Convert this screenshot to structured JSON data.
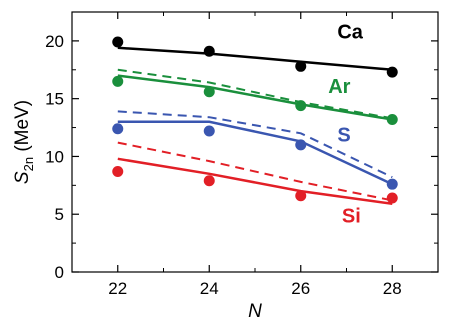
{
  "chart_data": {
    "type": "line",
    "title": "",
    "xlabel": "N",
    "ylabel": "S",
    "ylabel_sub": "2n",
    "ylabel_unit": " (MeV)",
    "xlim": [
      21,
      29
    ],
    "ylim": [
      0,
      22.5
    ],
    "xticks": [
      22,
      24,
      26,
      28
    ],
    "yticks": [
      0,
      5,
      10,
      15,
      20
    ],
    "grid": false,
    "legend": "inline labels",
    "series": [
      {
        "name": "Ca",
        "color": "#000000",
        "points": [
          {
            "x": 22,
            "y": 19.9
          },
          {
            "x": 24,
            "y": 19.1
          },
          {
            "x": 26,
            "y": 17.8
          },
          {
            "x": 28,
            "y": 17.3
          }
        ],
        "solid": [
          {
            "x": 22,
            "y": 19.4
          },
          {
            "x": 24,
            "y": 18.9
          },
          {
            "x": 26,
            "y": 18.2
          },
          {
            "x": 28,
            "y": 17.5
          }
        ],
        "dashed": []
      },
      {
        "name": "Ar",
        "color": "#1a8f3c",
        "points": [
          {
            "x": 22,
            "y": 16.5
          },
          {
            "x": 24,
            "y": 15.6
          },
          {
            "x": 26,
            "y": 14.4
          },
          {
            "x": 28,
            "y": 13.2
          }
        ],
        "solid": [
          {
            "x": 22,
            "y": 17.0
          },
          {
            "x": 24,
            "y": 16.0
          },
          {
            "x": 26,
            "y": 14.5
          },
          {
            "x": 28,
            "y": 13.2
          }
        ],
        "dashed": [
          {
            "x": 22,
            "y": 17.5
          },
          {
            "x": 24,
            "y": 16.4
          },
          {
            "x": 26,
            "y": 14.7
          },
          {
            "x": 28,
            "y": 13.3
          }
        ]
      },
      {
        "name": "S",
        "color": "#3a56b0",
        "points": [
          {
            "x": 22,
            "y": 12.4
          },
          {
            "x": 24,
            "y": 12.2
          },
          {
            "x": 26,
            "y": 11.0
          },
          {
            "x": 28,
            "y": 7.6
          }
        ],
        "solid": [
          {
            "x": 22,
            "y": 13.0
          },
          {
            "x": 24,
            "y": 13.0
          },
          {
            "x": 26,
            "y": 11.3
          },
          {
            "x": 28,
            "y": 7.6
          }
        ],
        "dashed": [
          {
            "x": 22,
            "y": 13.9
          },
          {
            "x": 24,
            "y": 13.4
          },
          {
            "x": 26,
            "y": 12.0
          },
          {
            "x": 28,
            "y": 8.2
          }
        ]
      },
      {
        "name": "Si",
        "color": "#e21f26",
        "points": [
          {
            "x": 22,
            "y": 8.7
          },
          {
            "x": 24,
            "y": 7.9
          },
          {
            "x": 26,
            "y": 6.6
          },
          {
            "x": 28,
            "y": 6.4
          }
        ],
        "solid": [
          {
            "x": 22,
            "y": 9.8
          },
          {
            "x": 24,
            "y": 8.5
          },
          {
            "x": 26,
            "y": 7.0
          },
          {
            "x": 28,
            "y": 5.9
          }
        ],
        "dashed": [
          {
            "x": 22,
            "y": 11.2
          },
          {
            "x": 24,
            "y": 9.6
          },
          {
            "x": 26,
            "y": 7.8
          },
          {
            "x": 28,
            "y": 6.2
          }
        ]
      }
    ]
  }
}
